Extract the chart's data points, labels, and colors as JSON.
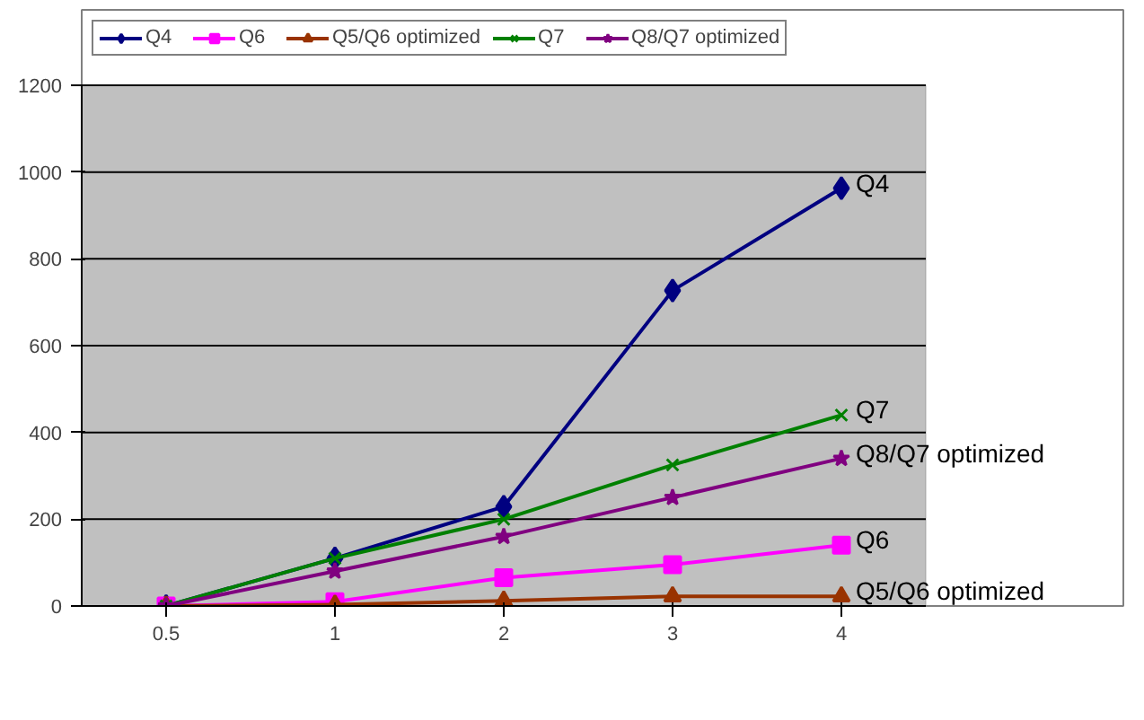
{
  "chart_data": {
    "type": "line",
    "categories": [
      "0.5",
      "1",
      "2",
      "3",
      "4"
    ],
    "series": [
      {
        "name": "Q4",
        "color": "#000080",
        "marker": "diamond",
        "values": [
          0,
          110,
          229,
          727,
          963
        ]
      },
      {
        "name": "Q6",
        "color": "#ff00ff",
        "marker": "square",
        "values": [
          0,
          10,
          65,
          95,
          140
        ]
      },
      {
        "name": "Q5/Q6 optimized",
        "color": "#993300",
        "marker": "triangle",
        "values": [
          0,
          3,
          12,
          22,
          22
        ]
      },
      {
        "name": "Q7",
        "color": "#008000",
        "marker": "cross",
        "values": [
          0,
          110,
          200,
          325,
          440
        ]
      },
      {
        "name": "Q8/Q7 optimized",
        "color": "#800080",
        "marker": "star",
        "values": [
          0,
          80,
          160,
          250,
          340
        ]
      }
    ],
    "ylim": [
      0,
      1200
    ],
    "yticks": [
      0,
      200,
      400,
      600,
      800,
      1000,
      1200
    ],
    "grid": "y",
    "legend": "top",
    "line_style": "solid"
  }
}
